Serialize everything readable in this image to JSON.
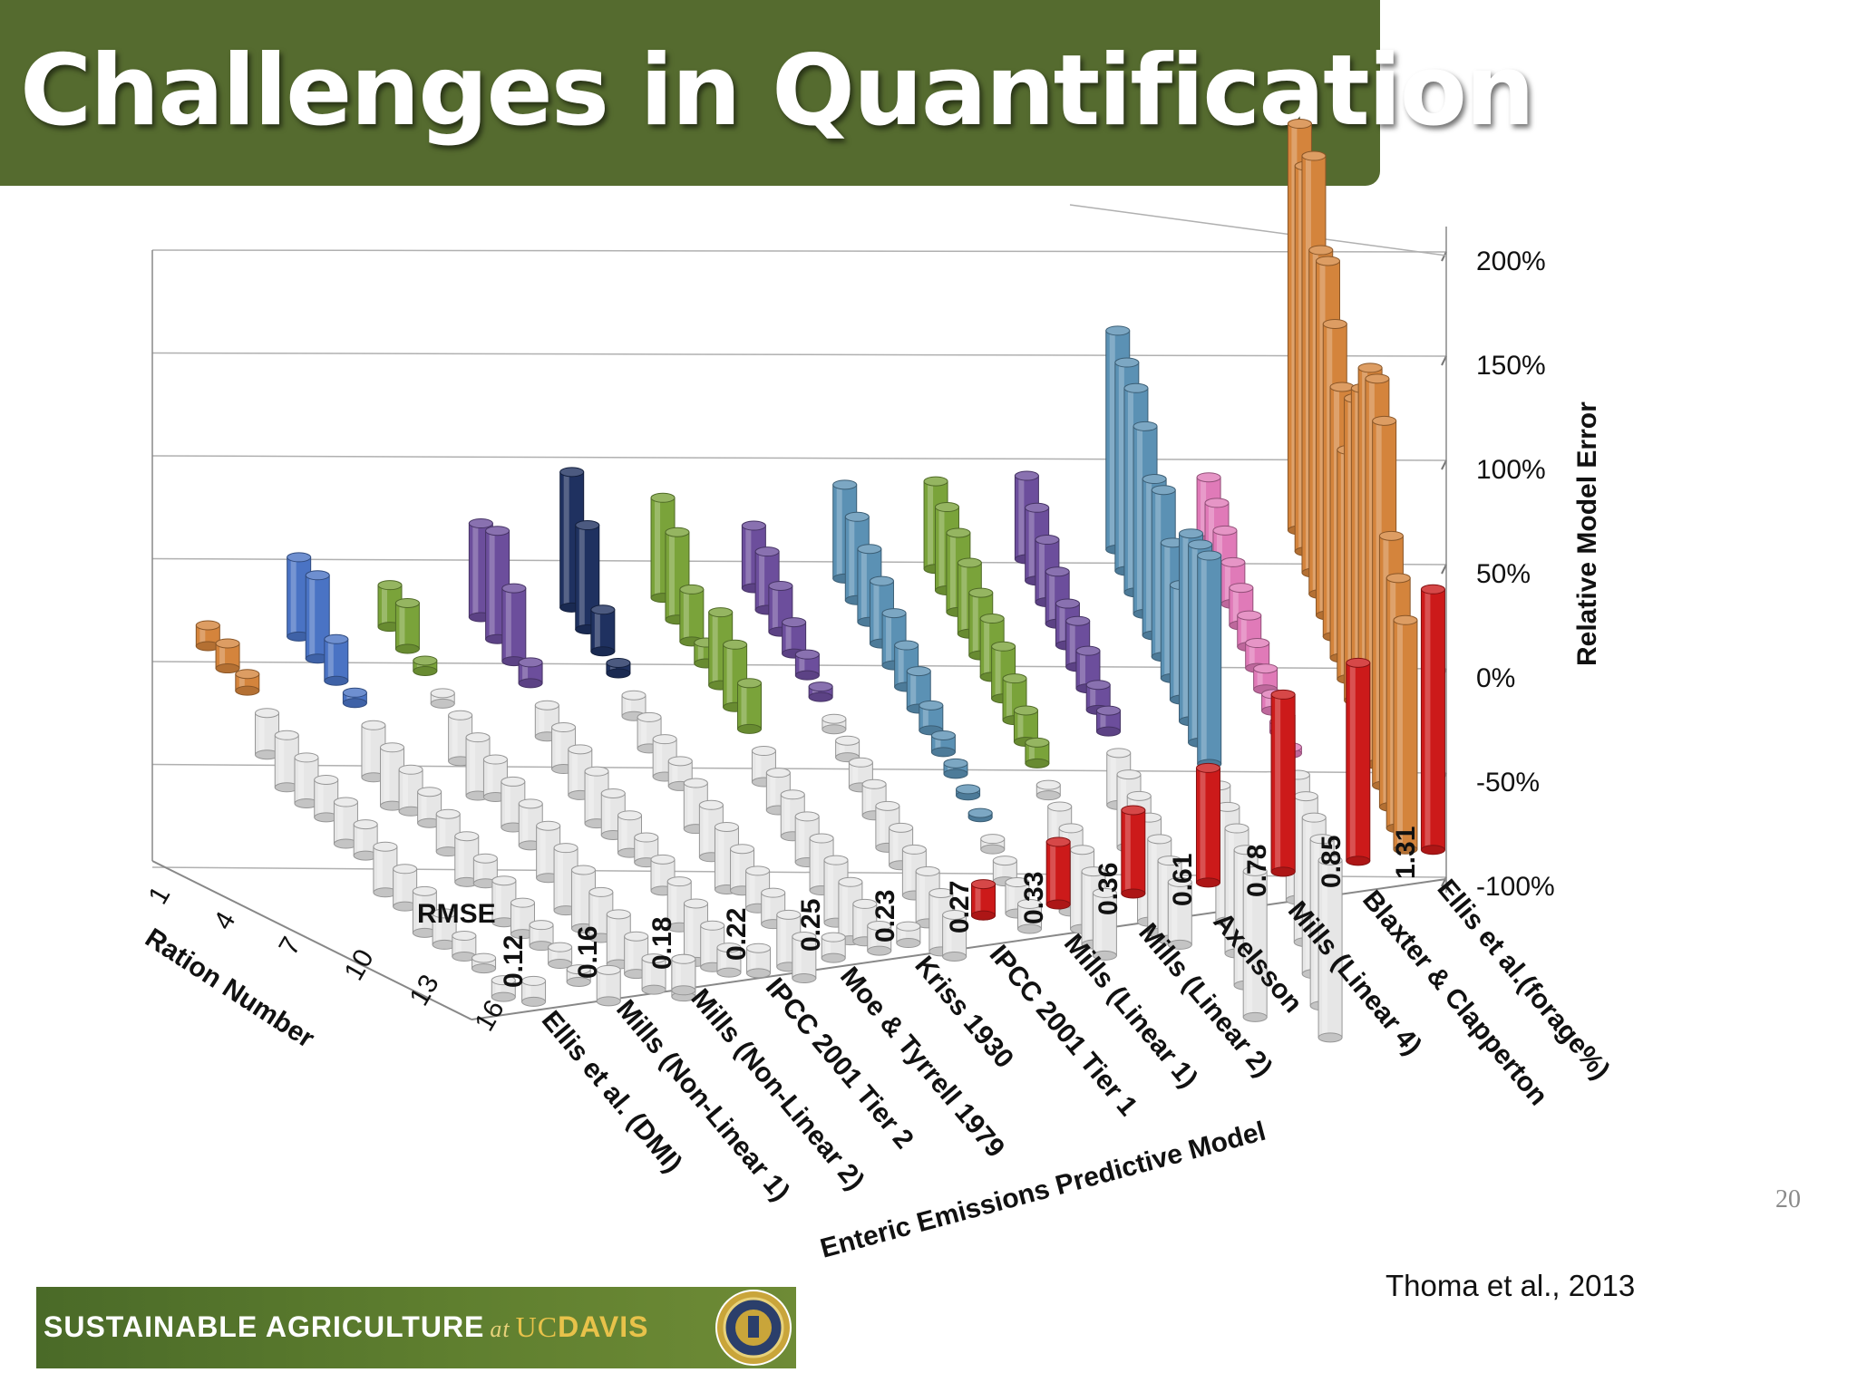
{
  "slide": {
    "title": "Challenges in Quantification",
    "slide_number": "20",
    "citation": "Thoma et al., 2013"
  },
  "footer": {
    "text_1": "SUSTAINABLE  AGRICULTURE",
    "text_at": "at",
    "text_uc": "UC",
    "text_davis": "DAVIS"
  },
  "chart_data": {
    "type": "bar",
    "style": "3d-cylinder",
    "z_axis_title": "Relative Model Error",
    "z_ticks": [
      "200%",
      "150%",
      "100%",
      "50%",
      "0%",
      "-50%",
      "-100%"
    ],
    "ylim": [
      -100,
      200
    ],
    "x_axis_title": "Enteric Emissions Predictive Model",
    "rmse_label": "RMSE",
    "depth_axis_title": "Ration Number",
    "ration_ticks": [
      "1",
      "4",
      "7",
      "10",
      "13",
      "16"
    ],
    "models": [
      {
        "name": "Ellis et al. (DMI)",
        "rmse": "0.12",
        "color": "#d4843c",
        "values": [
          10,
          12,
          8,
          -20,
          -25,
          -22,
          -18,
          -20,
          -15,
          -22,
          -18,
          -20,
          -15,
          -10,
          -5,
          -8
        ]
      },
      {
        "name": "Mills (Non-Linear 1)",
        "rmse": "0.16",
        "color": "#4a73c4",
        "values": [
          38,
          40,
          20,
          5,
          -25,
          -28,
          -20,
          -15,
          -18,
          -22,
          -12,
          -20,
          -15,
          -10,
          -8,
          -6
        ]
      },
      {
        "name": "Mills (Non-Linear 2)",
        "rmse": "0.18",
        "color": "#7aa33a",
        "values": [
          20,
          22,
          5,
          -5,
          -22,
          -28,
          -18,
          -22,
          -20,
          -25,
          -30,
          -28,
          -22,
          -24,
          -18,
          -15
        ]
      },
      {
        "name": "IPCC 2001 Tier 2",
        "rmse": "0.22",
        "color": "#6c4e9c",
        "values": [
          45,
          52,
          35,
          10,
          -15,
          -20,
          -22,
          -25,
          -20,
          -18,
          -12,
          -15,
          -22,
          -28,
          -20,
          -12
        ]
      },
      {
        "name": "Moe & Tyrrell 1979",
        "rmse": "0.25",
        "color": "#1f3160",
        "values": [
          65,
          50,
          20,
          5,
          -10,
          -15,
          -18,
          -12,
          -22,
          -25,
          -30,
          -20,
          -18,
          -15,
          -25,
          -20
        ]
      },
      {
        "name": "Kriss 1930",
        "rmse": "0.23",
        "color": "#7aa33a",
        "values": [
          48,
          42,
          25,
          10,
          35,
          30,
          22,
          -15,
          -18,
          -20,
          -22,
          -25,
          -30,
          -28,
          -18,
          -12
        ]
      },
      {
        "name": "IPCC 2001 Tier 1",
        "rmse": "0.27",
        "color": "#6c4e9c",
        "values": [
          30,
          28,
          22,
          15,
          10,
          5,
          -5,
          -8,
          -12,
          -15,
          -20,
          -18,
          -22,
          -25,
          -28,
          -20
        ]
      },
      {
        "name": "Mills (Linear 1)",
        "rmse": "0.33",
        "color": "#5b91b4",
        "values": [
          45,
          40,
          35,
          30,
          25,
          20,
          18,
          12,
          8,
          5,
          3,
          2,
          -5,
          -10,
          -15,
          -12
        ]
      },
      {
        "name": "Mills (Linear 2)",
        "rmse": "0.36",
        "color": "#7aa33a",
        "values": [
          42,
          40,
          38,
          34,
          30,
          28,
          25,
          20,
          15,
          10,
          -5,
          -30,
          -40,
          -38,
          -35,
          -30
        ]
      },
      {
        "name": "Axelsson",
        "rmse": "0.61",
        "color": "#6c4e9c",
        "values": [
          40,
          35,
          30,
          25,
          20,
          22,
          18,
          12,
          10,
          -25,
          -35,
          -42,
          -50,
          -45,
          -38,
          -30
        ]
      },
      {
        "name": "Mills (Linear 4)",
        "rmse": "0.78",
        "color": "#5b91b4",
        "values": [
          105,
          100,
          98,
          90,
          75,
          80,
          65,
          55,
          90,
          95,
          100,
          -40,
          -55,
          -60,
          -65,
          -70
        ]
      },
      {
        "name": "Blaxter & Clapperton",
        "rmse": "0.85",
        "color": "#e07ab8",
        "values": [
          30,
          28,
          25,
          20,
          18,
          15,
          12,
          10,
          8,
          5,
          3,
          -60,
          -70,
          -75,
          -80,
          -85
        ]
      },
      {
        "name": "Ellis et al.(forage%)",
        "rmse": "1.31",
        "color": "#d4843c",
        "values": [
          195,
          185,
          200,
          165,
          170,
          150,
          130,
          110,
          145,
          160,
          180,
          185,
          175,
          130,
          120,
          110
        ]
      }
    ],
    "special_series": {
      "name": "",
      "color": "#cc1a1a",
      "values": [
        -10,
        -15,
        -18,
        -15,
        -12,
        -10,
        -8,
        5,
        15,
        30,
        40,
        55,
        75,
        85,
        95,
        125
      ]
    },
    "negative_bar_color": "#e6e6e6"
  }
}
